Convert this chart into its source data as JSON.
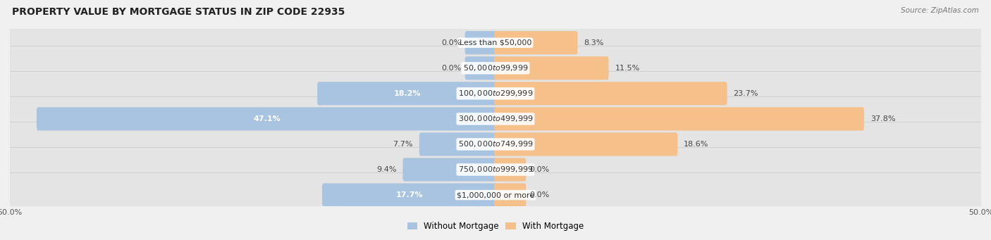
{
  "title": "PROPERTY VALUE BY MORTGAGE STATUS IN ZIP CODE 22935",
  "source": "Source: ZipAtlas.com",
  "categories": [
    "Less than $50,000",
    "$50,000 to $99,999",
    "$100,000 to $299,999",
    "$300,000 to $499,999",
    "$500,000 to $749,999",
    "$750,000 to $999,999",
    "$1,000,000 or more"
  ],
  "without_mortgage": [
    0.0,
    0.0,
    18.2,
    47.1,
    7.7,
    9.4,
    17.7
  ],
  "with_mortgage": [
    8.3,
    11.5,
    23.7,
    37.8,
    18.6,
    0.0,
    0.0
  ],
  "color_without": "#a8c4e0",
  "color_with": "#f5c08a",
  "background_color": "#f0f0f0",
  "bar_bg_color": "#e4e4e4",
  "xlim": 50.0,
  "title_fontsize": 10,
  "label_fontsize": 8,
  "tick_fontsize": 8,
  "legend_fontsize": 8.5
}
